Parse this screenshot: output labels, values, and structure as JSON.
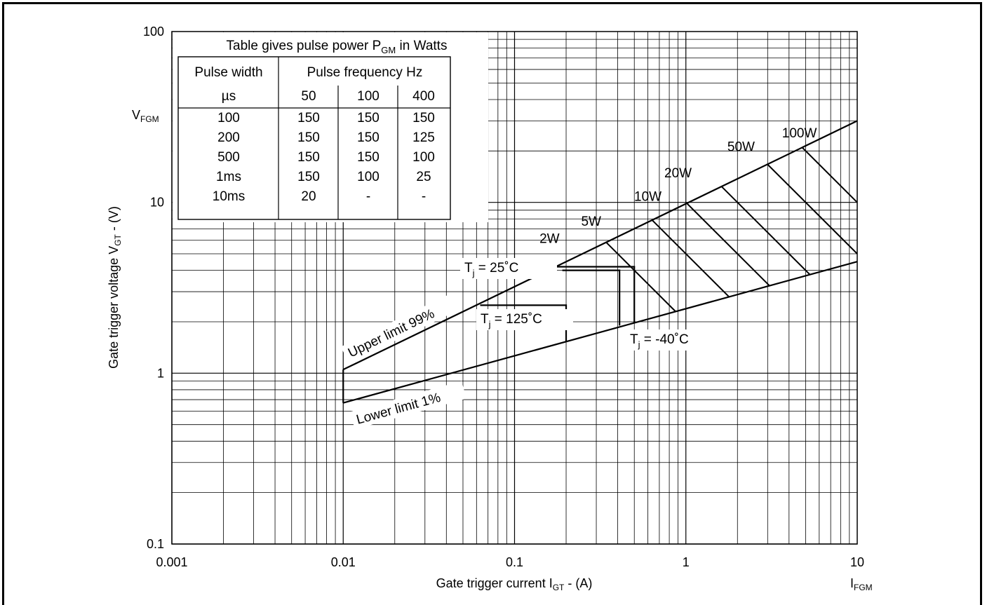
{
  "chart_data": {
    "type": "line",
    "x_scale": "log",
    "y_scale": "log",
    "xlim": [
      0.001,
      10
    ],
    "ylim": [
      0.1,
      100
    ],
    "grid": true,
    "xlabel": {
      "prefix": "Gate trigger current I",
      "sub": "GT",
      "suffix": " - (A)"
    },
    "ylabel": {
      "prefix": "Gate trigger voltage V",
      "sub": "GT",
      "suffix": " - (V)"
    },
    "x_ticks": [
      "0.001",
      "0.01",
      "0.1",
      "1",
      "10"
    ],
    "y_ticks": [
      "100",
      "10",
      "1",
      "0.1"
    ],
    "x_extra_label": {
      "main": "I",
      "sub": "FGM"
    },
    "y_extra_label": {
      "main": "V",
      "sub": "FGM"
    },
    "series": [
      {
        "name": "Upper limit 99%",
        "x": [
          0.01,
          10
        ],
        "y": [
          1.05,
          30
        ]
      },
      {
        "name": "Lower limit 1%",
        "x": [
          0.01,
          10
        ],
        "y": [
          0.67,
          4.5
        ]
      }
    ],
    "temperature_labels": [
      {
        "main": "T",
        "sub": "j",
        "text": " = 25˚C"
      },
      {
        "main": "T",
        "sub": "j",
        "text": " = 125˚C"
      },
      {
        "main": "T",
        "sub": "j",
        "text": " = -40˚C"
      }
    ],
    "power_curves": [
      {
        "label": "2W",
        "watts": 2
      },
      {
        "label": "5W",
        "watts": 5
      },
      {
        "label": "10W",
        "watts": 10
      },
      {
        "label": "20W",
        "watts": 20
      },
      {
        "label": "50W",
        "watts": 50
      },
      {
        "label": "100W",
        "watts": 100
      }
    ],
    "table": {
      "title_prefix": "Table gives pulse power P",
      "title_sub": "GM",
      "title_suffix": " in Watts",
      "col1_header": "Pulse width",
      "col1_unit": "µs",
      "freq_header": "Pulse frequency Hz",
      "freq_cols": [
        "50",
        "100",
        "400"
      ],
      "rows": [
        [
          "100",
          "150",
          "150",
          "150"
        ],
        [
          "200",
          "150",
          "150",
          "125"
        ],
        [
          "500",
          "150",
          "150",
          "100"
        ],
        [
          "1ms",
          "150",
          "100",
          "25"
        ],
        [
          "10ms",
          "20",
          "-",
          "-"
        ]
      ]
    }
  }
}
